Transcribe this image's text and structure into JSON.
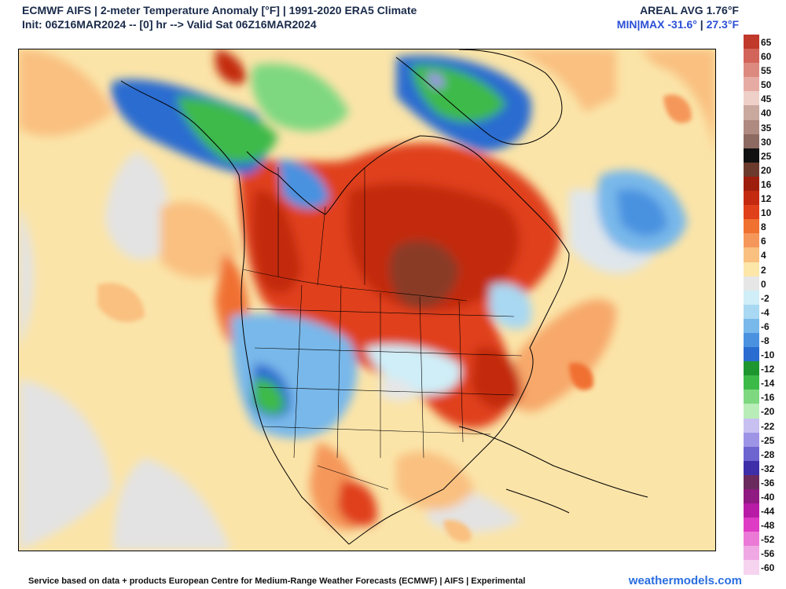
{
  "header": {
    "title": "ECMWF AIFS | 2-meter Temperature Anomaly [°F] | 1991-2020 ERA5 Climate",
    "init": "Init: 06Z16MAR2024 -- [0] hr --> Valid Sat 06Z16MAR2024",
    "areal_avg": "AREAL AVG 1.76°F",
    "minmax_label": "MIN|MAX",
    "min_value": "-31.6°",
    "max_value": "27.3°F"
  },
  "legend": {
    "items": [
      {
        "label": "65",
        "color": "#c0392b"
      },
      {
        "label": "60",
        "color": "#d2645a"
      },
      {
        "label": "55",
        "color": "#dc8a80"
      },
      {
        "label": "50",
        "color": "#e6aca4"
      },
      {
        "label": "45",
        "color": "#efd0c8"
      },
      {
        "label": "40",
        "color": "#c9a89e"
      },
      {
        "label": "35",
        "color": "#ae8a80"
      },
      {
        "label": "30",
        "color": "#8c6a62"
      },
      {
        "label": "25",
        "color": "#111111"
      },
      {
        "label": "20",
        "color": "#6b3a2c"
      },
      {
        "label": "16",
        "color": "#9e1e0e"
      },
      {
        "label": "12",
        "color": "#c32a10"
      },
      {
        "label": "10",
        "color": "#e0401a"
      },
      {
        "label": "8",
        "color": "#f07030"
      },
      {
        "label": "6",
        "color": "#f5975a"
      },
      {
        "label": "4",
        "color": "#f9c080"
      },
      {
        "label": "2",
        "color": "#fce6a8"
      },
      {
        "label": "0",
        "color": "#e6e6e6"
      },
      {
        "label": "-2",
        "color": "#cfeef8"
      },
      {
        "label": "-4",
        "color": "#a9d8f2"
      },
      {
        "label": "-6",
        "color": "#78b8ea"
      },
      {
        "label": "-8",
        "color": "#4a92e0"
      },
      {
        "label": "-10",
        "color": "#2a6cd0"
      },
      {
        "label": "-12",
        "color": "#1e9630"
      },
      {
        "label": "-14",
        "color": "#3cba48"
      },
      {
        "label": "-16",
        "color": "#7ed880"
      },
      {
        "label": "-20",
        "color": "#b9edb8"
      },
      {
        "label": "-22",
        "color": "#c8c0f0"
      },
      {
        "label": "-25",
        "color": "#9e94e6"
      },
      {
        "label": "-28",
        "color": "#6e64d0"
      },
      {
        "label": "-32",
        "color": "#3e2ea8"
      },
      {
        "label": "-36",
        "color": "#6a2a5e"
      },
      {
        "label": "-40",
        "color": "#8e1a82"
      },
      {
        "label": "-44",
        "color": "#b81ca6"
      },
      {
        "label": "-48",
        "color": "#de3cc4"
      },
      {
        "label": "-52",
        "color": "#ea7ad6"
      },
      {
        "label": "-56",
        "color": "#f0a8e4"
      },
      {
        "label": "-60",
        "color": "#f6d4f0"
      }
    ]
  },
  "footer": {
    "credit": "Service based on data + products European Centre for Medium-Range Weather Forecasts (ECMWF) | AIFS | Experimental",
    "brand": "weathermodels.com"
  }
}
